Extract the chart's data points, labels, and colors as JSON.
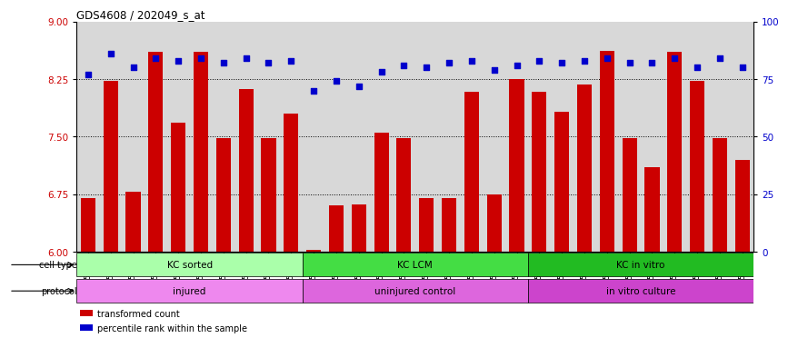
{
  "title": "GDS4608 / 202049_s_at",
  "samples": [
    "GSM753020",
    "GSM753021",
    "GSM753022",
    "GSM753023",
    "GSM753024",
    "GSM753025",
    "GSM753026",
    "GSM753027",
    "GSM753028",
    "GSM753029",
    "GSM753010",
    "GSM753011",
    "GSM753012",
    "GSM753013",
    "GSM753014",
    "GSM753015",
    "GSM753016",
    "GSM753017",
    "GSM753018",
    "GSM753019",
    "GSM753030",
    "GSM753031",
    "GSM753032",
    "GSM753035",
    "GSM753037",
    "GSM753039",
    "GSM753042",
    "GSM753044",
    "GSM753047",
    "GSM753049"
  ],
  "bar_values": [
    6.7,
    8.22,
    6.78,
    8.6,
    7.68,
    8.6,
    7.48,
    8.12,
    7.48,
    7.8,
    6.02,
    6.6,
    6.62,
    7.55,
    7.48,
    6.7,
    6.7,
    8.08,
    6.74,
    8.25,
    8.08,
    7.82,
    8.18,
    8.62,
    7.48,
    7.1,
    8.6,
    8.22,
    7.48,
    7.2
  ],
  "percentile_values": [
    77,
    86,
    80,
    84,
    83,
    84,
    82,
    84,
    82,
    83,
    70,
    74,
    72,
    78,
    81,
    80,
    82,
    83,
    79,
    81,
    83,
    82,
    83,
    84,
    82,
    82,
    84,
    80,
    84,
    80
  ],
  "bar_color": "#cc0000",
  "dot_color": "#0000cc",
  "ylim_left": [
    6,
    9
  ],
  "ylim_right": [
    0,
    100
  ],
  "yticks_left": [
    6,
    6.75,
    7.5,
    8.25,
    9
  ],
  "yticks_right": [
    0,
    25,
    50,
    75,
    100
  ],
  "hlines": [
    6.75,
    7.5,
    8.25
  ],
  "chart_bg": "#d8d8d8",
  "cell_type_groups": [
    {
      "label": "KC sorted",
      "start": 0,
      "end": 9,
      "color": "#aaffaa"
    },
    {
      "label": "KC LCM",
      "start": 10,
      "end": 19,
      "color": "#44dd44"
    },
    {
      "label": "KC in vitro",
      "start": 20,
      "end": 29,
      "color": "#22bb22"
    }
  ],
  "protocol_groups": [
    {
      "label": "injured",
      "start": 0,
      "end": 9,
      "color": "#ee88ee"
    },
    {
      "label": "uninjured control",
      "start": 10,
      "end": 19,
      "color": "#dd66dd"
    },
    {
      "label": "in vitro culture",
      "start": 20,
      "end": 29,
      "color": "#cc44cc"
    }
  ],
  "legend_items": [
    {
      "label": "transformed count",
      "color": "#cc0000"
    },
    {
      "label": "percentile rank within the sample",
      "color": "#0000cc"
    }
  ]
}
